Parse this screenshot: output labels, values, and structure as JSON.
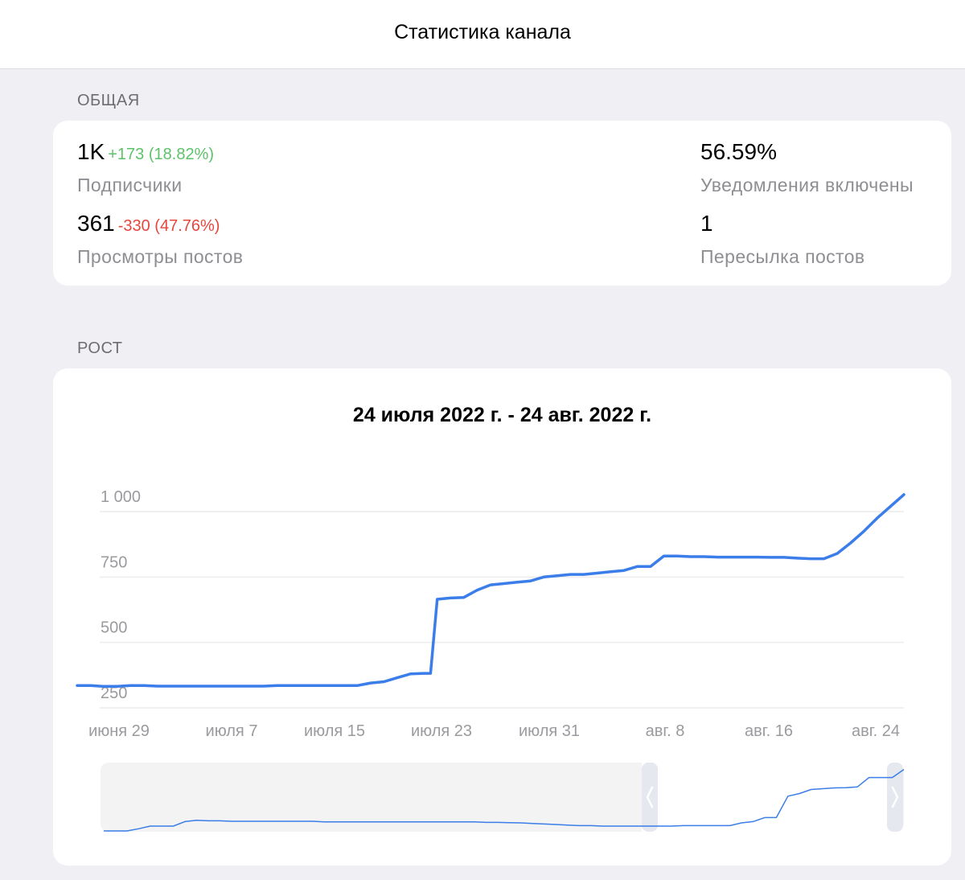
{
  "header": {
    "title": "Статистика канала"
  },
  "overview": {
    "section_label": "ОБЩАЯ",
    "subscribers": {
      "value": "1K",
      "delta": "+173 (18.82%)",
      "label": "Подписчики"
    },
    "notifications": {
      "value": "56.59%",
      "label": "Уведомления включены"
    },
    "views": {
      "value": "361",
      "delta": "-330 (47.76%)",
      "label": "Просмотры постов"
    },
    "shares": {
      "value": "1",
      "label": "Пересылка постов"
    }
  },
  "growth": {
    "section_label": "РОСТ",
    "range_title": "24 июля 2022 г. - 24 авг. 2022 г."
  },
  "colors": {
    "line": "#3b7de9",
    "positive": "#5ec26a",
    "negative": "#e5473d"
  },
  "chart_data": {
    "type": "line",
    "title": "24 июля 2022 г. - 24 авг. 2022 г.",
    "x_tick_labels": [
      "июня 29",
      "июля 7",
      "июля 15",
      "июля 23",
      "июля 31",
      "авг. 8",
      "авг. 16",
      "авг. 24"
    ],
    "y_tick_labels": [
      "250",
      "500",
      "750",
      "1 000"
    ],
    "y_ticks": [
      250,
      500,
      750,
      1000
    ],
    "ylim": [
      250,
      1100
    ],
    "grid": true,
    "series": [
      {
        "x": [
          0,
          1,
          2,
          3,
          4,
          5,
          6,
          7,
          8,
          9,
          10,
          11,
          12,
          13,
          14,
          15,
          16,
          17,
          18,
          19,
          20,
          21,
          22,
          23,
          24,
          25,
          26,
          26.5,
          27,
          28,
          29,
          30,
          31,
          32,
          33,
          34,
          35,
          36,
          37,
          38,
          39,
          40,
          41,
          42,
          43,
          44,
          45,
          46,
          47,
          48,
          49,
          50,
          51,
          52,
          53,
          54,
          55,
          56,
          57,
          58,
          59,
          60,
          61,
          62
        ],
        "y": [
          335,
          335,
          332,
          332,
          335,
          335,
          333,
          333,
          333,
          333,
          333,
          333,
          333,
          333,
          333,
          335,
          335,
          335,
          335,
          335,
          335,
          335,
          345,
          350,
          365,
          380,
          382,
          382,
          665,
          670,
          672,
          700,
          720,
          725,
          730,
          735,
          750,
          755,
          760,
          760,
          765,
          770,
          775,
          790,
          790,
          830,
          830,
          828,
          828,
          826,
          826,
          826,
          826,
          825,
          825,
          822,
          820,
          820,
          840,
          880,
          925,
          975,
          1020,
          1065
        ]
      }
    ],
    "navigator": {
      "y": [
        250,
        250,
        250,
        258,
        268,
        268,
        268,
        285,
        290,
        288,
        288,
        286,
        286,
        286,
        286,
        286,
        286,
        286,
        286,
        284,
        284,
        284,
        284,
        284,
        284,
        284,
        284,
        284,
        284,
        284,
        284,
        284,
        284,
        282,
        282,
        281,
        280,
        278,
        276,
        274,
        272,
        270,
        270,
        268,
        268,
        268,
        268,
        268,
        268,
        268,
        270,
        270,
        270,
        270,
        270,
        280,
        285,
        300,
        300,
        380,
        390,
        405,
        408,
        411,
        412,
        415,
        450,
        450,
        450,
        480
      ]
    }
  }
}
